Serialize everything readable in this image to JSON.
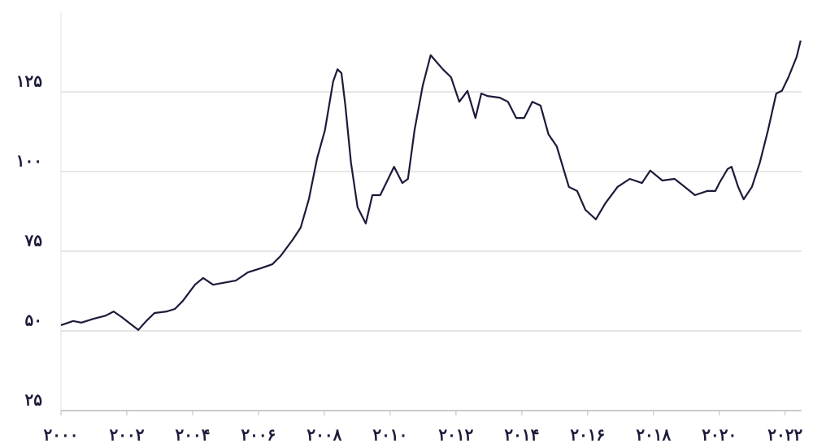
{
  "chart_data": {
    "type": "line",
    "x": [
      2000.0,
      2000.37,
      2000.62,
      2000.99,
      2001.36,
      2001.6,
      2001.85,
      2002.1,
      2002.35,
      2002.59,
      2002.84,
      2003.21,
      2003.46,
      2003.7,
      2004.07,
      2004.32,
      2004.62,
      2004.94,
      2005.31,
      2005.68,
      2006.05,
      2006.42,
      2006.67,
      2007.04,
      2007.28,
      2007.53,
      2007.78,
      2008.02,
      2008.27,
      2008.4,
      2008.52,
      2008.64,
      2008.81,
      2009.01,
      2009.26,
      2009.46,
      2009.7,
      2009.88,
      2010.12,
      2010.37,
      2010.54,
      2010.74,
      2010.99,
      2011.23,
      2011.6,
      2011.85,
      2012.1,
      2012.35,
      2012.59,
      2012.77,
      2012.96,
      2013.33,
      2013.58,
      2013.83,
      2014.07,
      2014.32,
      2014.57,
      2014.81,
      2015.06,
      2015.43,
      2015.68,
      2015.93,
      2016.25,
      2016.54,
      2016.91,
      2017.28,
      2017.65,
      2017.9,
      2018.27,
      2018.64,
      2018.89,
      2019.26,
      2019.63,
      2019.88,
      2020.0,
      2020.25,
      2020.37,
      2020.57,
      2020.74,
      2020.99,
      2021.23,
      2021.48,
      2021.73,
      2021.9,
      2022.1,
      2022.35,
      2022.47
    ],
    "values": [
      51.8,
      53.1,
      52.6,
      53.8,
      54.8,
      56.1,
      54.3,
      52.3,
      50.3,
      53.1,
      55.6,
      56.1,
      56.9,
      59.4,
      64.5,
      66.6,
      64.5,
      65.1,
      65.8,
      68.4,
      69.6,
      70.9,
      73.5,
      78.6,
      82.4,
      91.3,
      104.1,
      113.0,
      128.3,
      132.1,
      130.9,
      120.7,
      102.8,
      88.8,
      83.7,
      92.6,
      92.6,
      96.4,
      101.5,
      96.4,
      97.7,
      113.0,
      127.0,
      136.5,
      132.1,
      129.6,
      121.9,
      125.3,
      116.8,
      124.5,
      123.7,
      123.2,
      121.9,
      116.8,
      116.8,
      121.9,
      120.7,
      111.7,
      107.9,
      95.2,
      93.9,
      88.0,
      85.0,
      90.1,
      95.2,
      97.7,
      96.4,
      100.3,
      97.2,
      97.7,
      95.7,
      92.6,
      93.9,
      93.9,
      96.4,
      100.8,
      101.5,
      95.2,
      91.3,
      95.2,
      102.8,
      113.0,
      124.5,
      125.3,
      129.6,
      136.0,
      141.1
    ],
    "color": "#1b1b3a",
    "xlim": [
      2000,
      2022.5
    ],
    "xticks": [
      {
        "value": 2000,
        "label": "۲۰۰۰"
      },
      {
        "value": 2002,
        "label": "۲۰۰۲"
      },
      {
        "value": 2004,
        "label": "۲۰۰۴"
      },
      {
        "value": 2006,
        "label": "۲۰۰۶"
      },
      {
        "value": 2008,
        "label": "۲۰۰۸"
      },
      {
        "value": 2010,
        "label": "۲۰۱۰"
      },
      {
        "value": 2012,
        "label": "۲۰۱۲"
      },
      {
        "value": 2014,
        "label": "۲۰۱۴"
      },
      {
        "value": 2016,
        "label": "۲۰۱۶"
      },
      {
        "value": 2018,
        "label": "۲۰۱۸"
      },
      {
        "value": 2020,
        "label": "۲۰۲۰"
      },
      {
        "value": 2022,
        "label": "۲۰۲۲"
      }
    ],
    "ylim": [
      25,
      150
    ],
    "yticks": [
      {
        "value": 25,
        "label": "۲۵"
      },
      {
        "value": 50,
        "label": "۵۰"
      },
      {
        "value": 75,
        "label": "۷۵"
      },
      {
        "value": 100,
        "label": "۱۰۰"
      },
      {
        "value": 125,
        "label": "۱۲۵"
      }
    ],
    "grid": true
  }
}
